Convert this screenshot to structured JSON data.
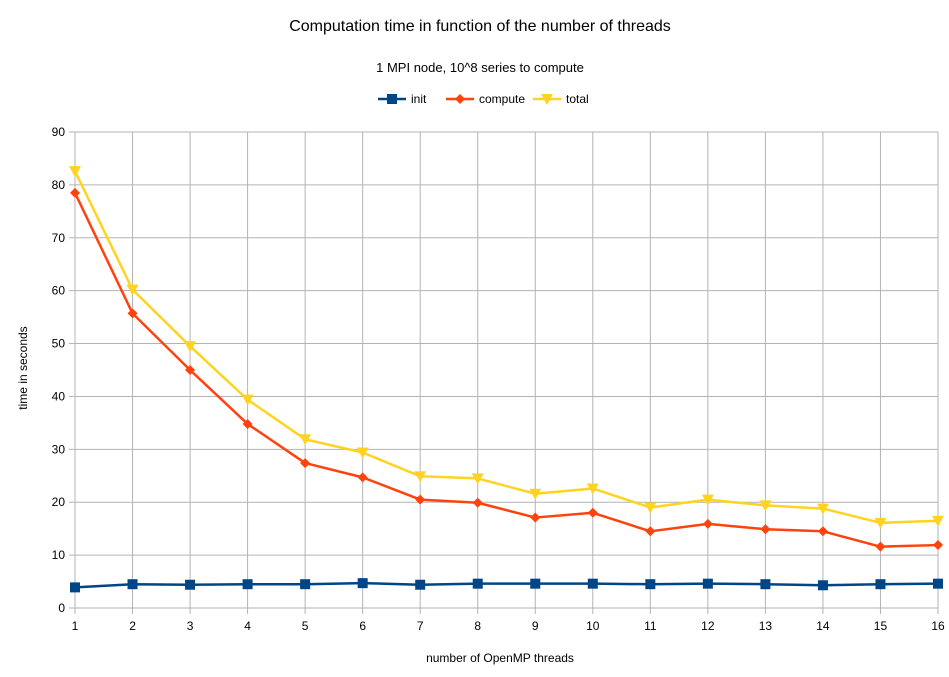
{
  "chart_data": {
    "type": "line",
    "title": "Computation time in function of the number of threads",
    "subtitle": "1 MPI node, 10^8 series to compute",
    "xlabel": "number of OpenMP threads",
    "ylabel": "time in seconds",
    "x": [
      1,
      2,
      3,
      4,
      5,
      6,
      7,
      8,
      9,
      10,
      11,
      12,
      13,
      14,
      15,
      16
    ],
    "xlim": [
      1,
      16
    ],
    "ylim": [
      0,
      90
    ],
    "yticks": [
      0,
      10,
      20,
      30,
      40,
      50,
      60,
      70,
      80,
      90
    ],
    "grid": true,
    "legend_position": "top",
    "series": [
      {
        "name": "init",
        "color": "#004586",
        "marker": "square",
        "values": [
          3.9,
          4.5,
          4.4,
          4.5,
          4.5,
          4.7,
          4.4,
          4.6,
          4.6,
          4.6,
          4.5,
          4.6,
          4.5,
          4.3,
          4.5,
          4.6
        ]
      },
      {
        "name": "compute",
        "color": "#ff420e",
        "marker": "diamond",
        "values": [
          78.5,
          55.7,
          45.0,
          34.8,
          27.4,
          24.7,
          20.5,
          19.9,
          17.1,
          18.0,
          14.5,
          15.9,
          14.9,
          14.5,
          11.6,
          11.9
        ]
      },
      {
        "name": "total",
        "color": "#ffd320",
        "marker": "triangle-down",
        "values": [
          82.6,
          60.2,
          49.5,
          39.4,
          31.9,
          29.4,
          24.9,
          24.5,
          21.6,
          22.6,
          19.0,
          20.5,
          19.4,
          18.8,
          16.1,
          16.5
        ]
      }
    ]
  }
}
